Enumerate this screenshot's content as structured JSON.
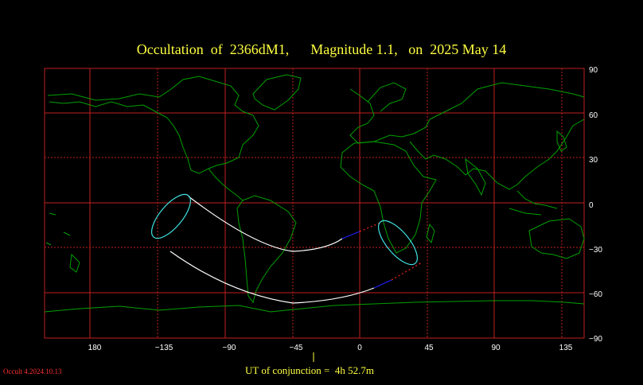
{
  "title": "Occultation  of  2366dM1,      Magnitude 1.1,   on  2025 May 14",
  "x_ticks": [
    "180",
    "−135",
    "−90",
    "−45",
    "0",
    "45",
    "90",
    "135"
  ],
  "y_ticks": [
    "90",
    "60",
    "30",
    "0",
    "−30",
    "−60",
    "−90"
  ],
  "ut_label": "UT of conjunction =  4h 52.7m",
  "version": "Occult 4.2024.10.13",
  "colors": {
    "background": "#000000",
    "grid": "#c02020",
    "coast": "#00a000",
    "path": "#ffffff",
    "limit_circle": "#40e0e0",
    "path_blue": "#2020ff",
    "path_red_dotted": "#ff2020",
    "title": "#ffff40"
  }
}
